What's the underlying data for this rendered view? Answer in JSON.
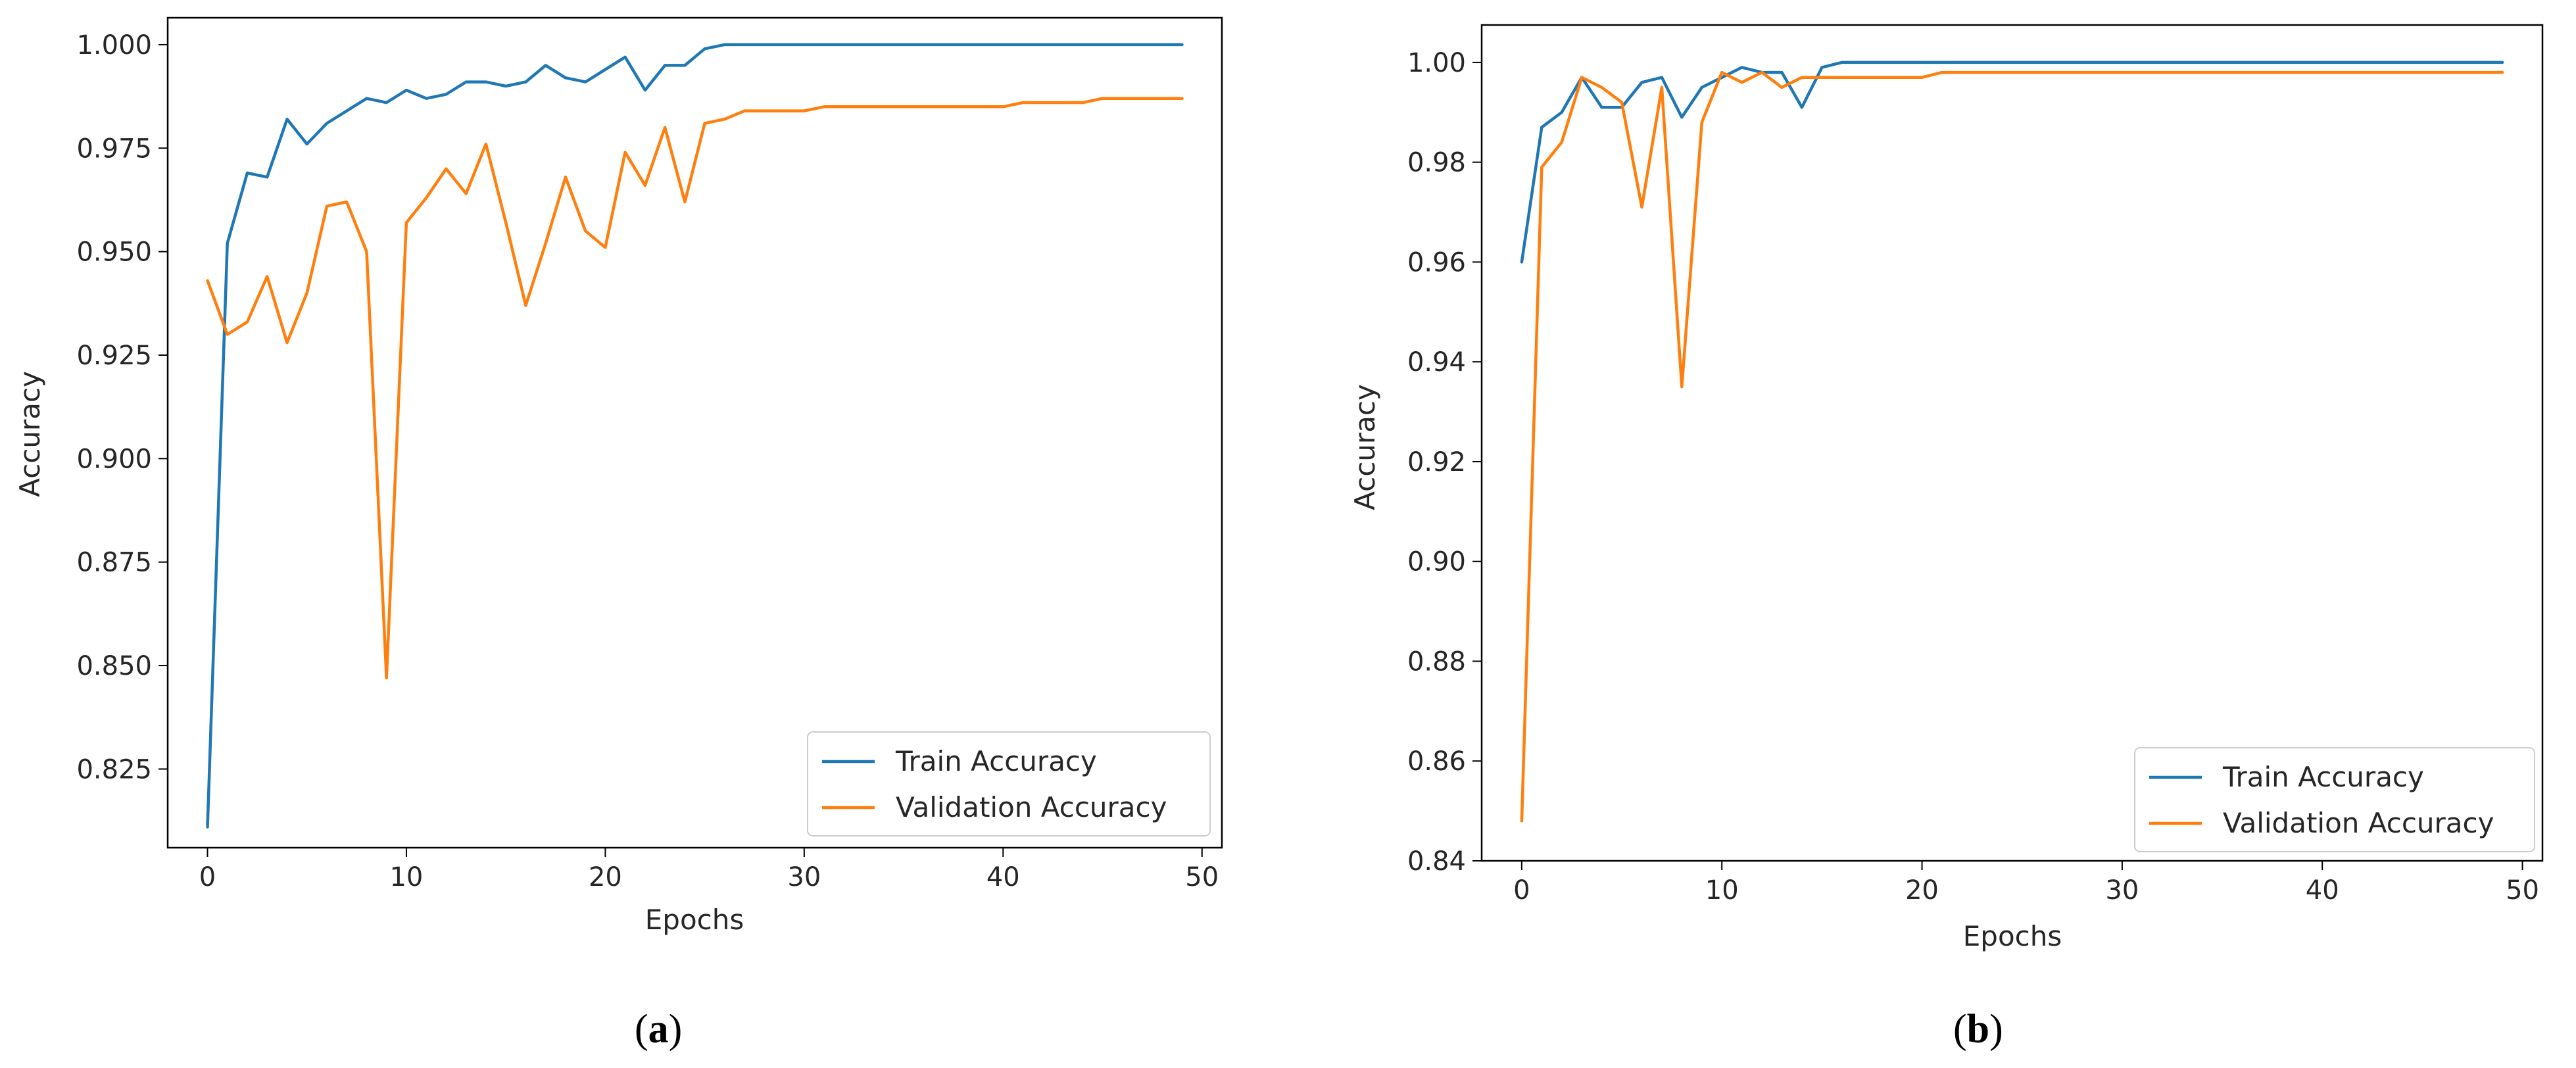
{
  "chart_data": [
    {
      "type": "line",
      "caption": {
        "open": "(",
        "letter": "a",
        "close": ")"
      },
      "xlabel": "Epochs",
      "ylabel": "Accuracy",
      "xlim": [
        -2,
        51
      ],
      "ylim": [
        0.806,
        1.0065
      ],
      "xticks": [
        0,
        10,
        20,
        30,
        40,
        50
      ],
      "yticks": [
        0.825,
        0.85,
        0.875,
        0.9,
        0.925,
        0.95,
        0.975,
        1.0
      ],
      "yticks_text": [
        "0.825",
        "0.850",
        "0.875",
        "0.900",
        "0.925",
        "0.950",
        "0.975",
        "1.000"
      ],
      "legend_position": "lower-right",
      "x": [
        0,
        1,
        2,
        3,
        4,
        5,
        6,
        7,
        8,
        9,
        10,
        11,
        12,
        13,
        14,
        15,
        16,
        17,
        18,
        19,
        20,
        21,
        22,
        23,
        24,
        25,
        26,
        27,
        28,
        29,
        30,
        31,
        32,
        33,
        34,
        35,
        36,
        37,
        38,
        39,
        40,
        41,
        42,
        43,
        44,
        45,
        46,
        47,
        48,
        49
      ],
      "series": [
        {
          "name": "Train Accuracy",
          "color": "#1f77b4",
          "values": [
            0.811,
            0.952,
            0.969,
            0.968,
            0.982,
            0.976,
            0.981,
            0.984,
            0.987,
            0.986,
            0.989,
            0.987,
            0.988,
            0.991,
            0.991,
            0.99,
            0.991,
            0.995,
            0.992,
            0.991,
            0.994,
            0.997,
            0.989,
            0.995,
            0.995,
            0.999,
            1.0,
            1.0,
            1.0,
            1.0,
            1.0,
            1.0,
            1.0,
            1.0,
            1.0,
            1.0,
            1.0,
            1.0,
            1.0,
            1.0,
            1.0,
            1.0,
            1.0,
            1.0,
            1.0,
            1.0,
            1.0,
            1.0,
            1.0,
            1.0
          ]
        },
        {
          "name": "Validation Accuracy",
          "color": "#ff7f0e",
          "values": [
            0.943,
            0.93,
            0.933,
            0.944,
            0.928,
            0.94,
            0.961,
            0.962,
            0.95,
            0.847,
            0.957,
            0.963,
            0.97,
            0.964,
            0.976,
            0.957,
            0.937,
            0.952,
            0.968,
            0.955,
            0.951,
            0.974,
            0.966,
            0.98,
            0.962,
            0.981,
            0.982,
            0.984,
            0.984,
            0.984,
            0.984,
            0.985,
            0.985,
            0.985,
            0.985,
            0.985,
            0.985,
            0.985,
            0.985,
            0.985,
            0.985,
            0.986,
            0.986,
            0.986,
            0.986,
            0.987,
            0.987,
            0.987,
            0.987,
            0.987
          ]
        }
      ]
    },
    {
      "type": "line",
      "caption": {
        "open": "(",
        "letter": "b",
        "close": ")"
      },
      "xlabel": "Epochs",
      "ylabel": "Accuracy",
      "xlim": [
        -2,
        51
      ],
      "ylim": [
        0.84,
        1.0075
      ],
      "xticks": [
        0,
        10,
        20,
        30,
        40,
        50
      ],
      "yticks": [
        0.84,
        0.86,
        0.88,
        0.9,
        0.92,
        0.94,
        0.96,
        0.98,
        1.0
      ],
      "yticks_text": [
        "0.84",
        "0.86",
        "0.88",
        "0.90",
        "0.92",
        "0.94",
        "0.96",
        "0.98",
        "1.00"
      ],
      "legend_position": "lower-right",
      "x": [
        0,
        1,
        2,
        3,
        4,
        5,
        6,
        7,
        8,
        9,
        10,
        11,
        12,
        13,
        14,
        15,
        16,
        17,
        18,
        19,
        20,
        21,
        22,
        23,
        24,
        25,
        26,
        27,
        28,
        29,
        30,
        31,
        32,
        33,
        34,
        35,
        36,
        37,
        38,
        39,
        40,
        41,
        42,
        43,
        44,
        45,
        46,
        47,
        48,
        49
      ],
      "series": [
        {
          "name": "Train Accuracy",
          "color": "#1f77b4",
          "values": [
            0.96,
            0.987,
            0.99,
            0.997,
            0.991,
            0.991,
            0.996,
            0.997,
            0.989,
            0.995,
            0.997,
            0.999,
            0.998,
            0.998,
            0.991,
            0.999,
            1.0,
            1.0,
            1.0,
            1.0,
            1.0,
            1.0,
            1.0,
            1.0,
            1.0,
            1.0,
            1.0,
            1.0,
            1.0,
            1.0,
            1.0,
            1.0,
            1.0,
            1.0,
            1.0,
            1.0,
            1.0,
            1.0,
            1.0,
            1.0,
            1.0,
            1.0,
            1.0,
            1.0,
            1.0,
            1.0,
            1.0,
            1.0,
            1.0,
            1.0
          ]
        },
        {
          "name": "Validation Accuracy",
          "color": "#ff7f0e",
          "values": [
            0.848,
            0.979,
            0.984,
            0.997,
            0.995,
            0.992,
            0.971,
            0.995,
            0.935,
            0.988,
            0.998,
            0.996,
            0.998,
            0.995,
            0.997,
            0.997,
            0.997,
            0.997,
            0.997,
            0.997,
            0.997,
            0.998,
            0.998,
            0.998,
            0.998,
            0.998,
            0.998,
            0.998,
            0.998,
            0.998,
            0.998,
            0.998,
            0.998,
            0.998,
            0.998,
            0.998,
            0.998,
            0.998,
            0.998,
            0.998,
            0.998,
            0.998,
            0.998,
            0.998,
            0.998,
            0.998,
            0.998,
            0.998,
            0.998,
            0.998
          ]
        }
      ]
    }
  ]
}
